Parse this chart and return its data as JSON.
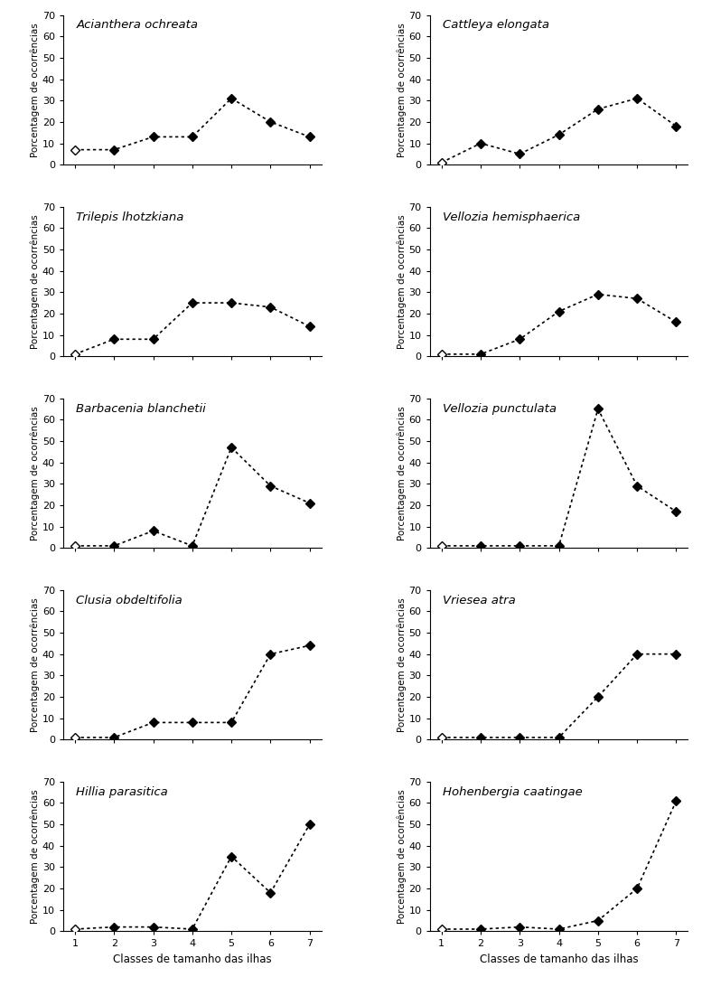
{
  "species_left": [
    "Acianthera ochreata",
    "Trilepis lhotzkiana",
    "Barbacenia blanchetii",
    "Clusia obdeltifolia",
    "Hillia parasitica"
  ],
  "species_right": [
    "Cattleya elongata",
    "Vellozia hemisphaerica",
    "Vellozia punctulata",
    "Vriesea atra",
    "Hohenbergia caatingae"
  ],
  "x": [
    1,
    2,
    3,
    4,
    5,
    6,
    7
  ],
  "data": {
    "Acianthera ochreata": [
      7,
      7,
      13,
      13,
      31,
      20,
      13
    ],
    "Cattleya elongata": [
      1,
      10,
      5,
      14,
      26,
      31,
      18
    ],
    "Trilepis lhotzkiana": [
      1,
      8,
      8,
      25,
      25,
      23,
      14
    ],
    "Vellozia hemisphaerica": [
      1,
      1,
      8,
      21,
      29,
      27,
      16
    ],
    "Barbacenia blanchetii": [
      1,
      1,
      8,
      1,
      47,
      29,
      21
    ],
    "Vellozia punctulata": [
      1,
      1,
      1,
      1,
      65,
      29,
      17
    ],
    "Clusia obdeltifolia": [
      1,
      1,
      8,
      8,
      8,
      40,
      44
    ],
    "Vriesea atra": [
      1,
      1,
      1,
      1,
      20,
      40,
      40
    ],
    "Hillia parasitica": [
      1,
      2,
      2,
      1,
      35,
      18,
      50
    ],
    "Hohenbergia caatingae": [
      1,
      1,
      2,
      1,
      5,
      20,
      61
    ]
  },
  "open_marker_x": [
    1
  ],
  "ylim": [
    0,
    70
  ],
  "yticks": [
    0,
    10,
    20,
    30,
    40,
    50,
    60,
    70
  ],
  "xticks": [
    1,
    2,
    3,
    4,
    5,
    6,
    7
  ],
  "ylabel": "Porcentagem de ocorrências",
  "xlabel": "Classes de tamanho das ilhas",
  "background_color": "#ffffff",
  "line_color": "#000000"
}
